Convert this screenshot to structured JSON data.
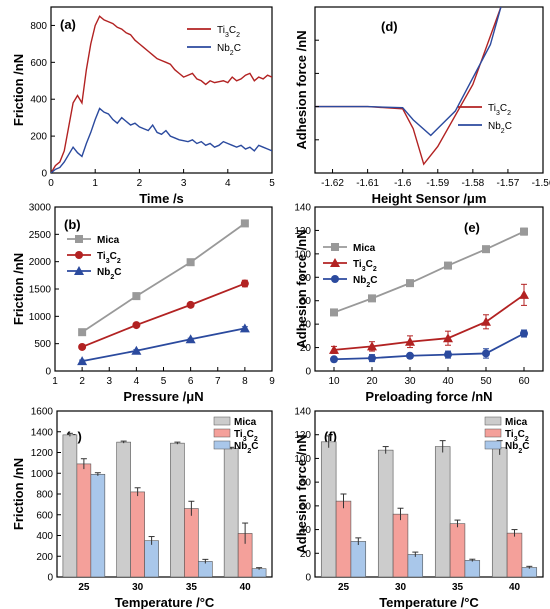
{
  "chart_data": [
    {
      "panel": "(a)",
      "type": "line",
      "xlabel": "Time /s",
      "ylabel": "Friction /nN",
      "xlim": [
        0,
        5
      ],
      "ylim": [
        0,
        900
      ],
      "xticks": [
        0,
        1,
        2,
        3,
        4,
        5
      ],
      "yticks": [
        0,
        200,
        400,
        600,
        800
      ],
      "legend_position": "top-right",
      "series": [
        {
          "name": "Ti3C2",
          "color": "#b22222",
          "x": [
            0.0,
            0.1,
            0.2,
            0.3,
            0.4,
            0.5,
            0.6,
            0.7,
            0.8,
            0.9,
            1.0,
            1.1,
            1.2,
            1.3,
            1.4,
            1.5,
            1.6,
            1.7,
            1.8,
            1.9,
            2.0,
            2.1,
            2.2,
            2.3,
            2.4,
            2.5,
            2.6,
            2.7,
            2.8,
            2.9,
            3.0,
            3.1,
            3.2,
            3.3,
            3.4,
            3.5,
            3.6,
            3.7,
            3.8,
            3.9,
            4.0,
            4.1,
            4.2,
            4.3,
            4.4,
            4.5,
            4.6,
            4.7,
            4.8,
            4.9,
            5.0
          ],
          "values": [
            0,
            40,
            60,
            120,
            250,
            380,
            420,
            380,
            560,
            700,
            800,
            850,
            830,
            820,
            810,
            790,
            780,
            760,
            750,
            720,
            700,
            680,
            660,
            640,
            620,
            610,
            600,
            590,
            560,
            540,
            520,
            530,
            540,
            510,
            500,
            480,
            500,
            490,
            495,
            500,
            490,
            520,
            500,
            510,
            530,
            540,
            500,
            520,
            510,
            530,
            520
          ]
        },
        {
          "name": "Nb2C",
          "color": "#2b4a9e",
          "x": [
            0.0,
            0.1,
            0.2,
            0.3,
            0.4,
            0.5,
            0.6,
            0.7,
            0.8,
            0.9,
            1.0,
            1.1,
            1.2,
            1.3,
            1.4,
            1.5,
            1.6,
            1.7,
            1.8,
            1.9,
            2.0,
            2.1,
            2.2,
            2.3,
            2.4,
            2.5,
            2.6,
            2.7,
            2.8,
            2.9,
            3.0,
            3.1,
            3.2,
            3.3,
            3.4,
            3.5,
            3.6,
            3.7,
            3.8,
            3.9,
            4.0,
            4.1,
            4.2,
            4.3,
            4.4,
            4.5,
            4.6,
            4.7,
            4.8,
            4.9,
            5.0
          ],
          "values": [
            0,
            20,
            30,
            60,
            100,
            140,
            110,
            90,
            160,
            220,
            290,
            350,
            330,
            320,
            290,
            270,
            300,
            280,
            260,
            270,
            250,
            240,
            230,
            260,
            220,
            210,
            230,
            200,
            190,
            180,
            175,
            170,
            180,
            160,
            170,
            150,
            160,
            140,
            150,
            170,
            160,
            150,
            140,
            150,
            130,
            140,
            120,
            150,
            140,
            130,
            120
          ]
        }
      ]
    },
    {
      "panel": "(d)",
      "type": "line",
      "xlabel": "Height Sensor /μm",
      "ylabel": "Adhesion force /nN",
      "xlim": [
        -1.625,
        -1.56
      ],
      "ylim": [
        -30,
        45
      ],
      "xticks": [
        -1.62,
        -1.61,
        -1.6,
        -1.59,
        -1.58,
        -1.57,
        -1.56
      ],
      "legend_position": "bottom-right",
      "series": [
        {
          "name": "Ti3C2",
          "color": "#b22222",
          "x": [
            -1.625,
            -1.61,
            -1.6,
            -1.597,
            -1.594,
            -1.59,
            -1.58,
            -1.572
          ],
          "values": [
            0,
            0,
            -1,
            -10,
            -26,
            -18,
            10,
            45
          ]
        },
        {
          "name": "Nb2C",
          "color": "#2b4a9e",
          "x": [
            -1.625,
            -1.61,
            -1.6,
            -1.597,
            -1.592,
            -1.585,
            -1.575,
            -1.572
          ],
          "values": [
            0,
            0,
            -0.5,
            -6,
            -13,
            -2,
            28,
            45
          ]
        }
      ]
    },
    {
      "panel": "(b)",
      "type": "line",
      "xlabel": "Pressure /μN",
      "ylabel": "Friction /nN",
      "xlim": [
        1,
        9
      ],
      "ylim": [
        0,
        3000
      ],
      "xticks": [
        1,
        2,
        3,
        4,
        5,
        6,
        7,
        8,
        9
      ],
      "yticks": [
        0,
        500,
        1000,
        1500,
        2000,
        2500,
        3000
      ],
      "legend_position": "top-left",
      "x": [
        2,
        4,
        6,
        8
      ],
      "series": [
        {
          "name": "Mica",
          "color": "#999999",
          "marker": "square",
          "values": [
            710,
            1370,
            1990,
            2700
          ],
          "errors": [
            40,
            30,
            30,
            40
          ]
        },
        {
          "name": "Ti3C2",
          "color": "#b22222",
          "marker": "circle",
          "values": [
            440,
            840,
            1210,
            1600
          ],
          "errors": [
            30,
            30,
            40,
            60
          ]
        },
        {
          "name": "Nb2C",
          "color": "#2b4a9e",
          "marker": "triangle",
          "values": [
            180,
            370,
            580,
            780
          ],
          "errors": [
            20,
            20,
            20,
            30
          ]
        }
      ]
    },
    {
      "panel": "(e)",
      "type": "line",
      "xlabel": "Preloading force /nN",
      "ylabel": "Adhesion force /nN",
      "xlim": [
        5,
        65
      ],
      "ylim": [
        0,
        140
      ],
      "xticks": [
        10,
        20,
        30,
        40,
        50,
        60
      ],
      "yticks": [
        0,
        20,
        40,
        60,
        80,
        100,
        120,
        140
      ],
      "legend_position": "top-left",
      "x": [
        10,
        20,
        30,
        40,
        50,
        60
      ],
      "series": [
        {
          "name": "Mica",
          "color": "#999999",
          "marker": "square",
          "values": [
            50,
            62,
            75,
            90,
            104,
            119
          ],
          "errors": [
            2,
            2,
            2,
            2,
            2,
            3
          ]
        },
        {
          "name": "Ti3C2",
          "color": "#b22222",
          "marker": "triangle",
          "values": [
            18,
            21,
            25,
            28,
            42,
            65
          ],
          "errors": [
            3,
            4,
            5,
            6,
            6,
            9
          ]
        },
        {
          "name": "Nb2C",
          "color": "#2b4a9e",
          "marker": "circle",
          "values": [
            10,
            11,
            13,
            14,
            15,
            32
          ],
          "errors": [
            2,
            3,
            2,
            3,
            4,
            3
          ]
        }
      ]
    },
    {
      "panel": "(c)",
      "type": "bar",
      "xlabel": "Temperature /°C",
      "ylabel": "Friction /nN",
      "ylim": [
        0,
        1600
      ],
      "yticks": [
        0,
        200,
        400,
        600,
        800,
        1000,
        1200,
        1400,
        1600
      ],
      "categories": [
        "25",
        "30",
        "35",
        "40"
      ],
      "legend_position": "top-right",
      "series": [
        {
          "name": "Mica",
          "color": "#cccccc",
          "values": [
            1370,
            1300,
            1290,
            1240
          ],
          "errors": [
            15,
            10,
            10,
            10
          ]
        },
        {
          "name": "Ti3C2",
          "color": "#f4a09a",
          "values": [
            1090,
            820,
            660,
            420
          ],
          "errors": [
            50,
            40,
            70,
            100
          ]
        },
        {
          "name": "Nb2C",
          "color": "#a9c7ea",
          "values": [
            990,
            350,
            150,
            80
          ],
          "errors": [
            15,
            40,
            20,
            10
          ]
        }
      ]
    },
    {
      "panel": "(f)",
      "type": "bar",
      "xlabel": "Temperature /°C",
      "ylabel": "Adhesion force /nN",
      "ylim": [
        0,
        140
      ],
      "yticks": [
        0,
        20,
        40,
        60,
        80,
        100,
        120,
        140
      ],
      "categories": [
        "25",
        "30",
        "35",
        "40"
      ],
      "legend_position": "top-right",
      "series": [
        {
          "name": "Mica",
          "color": "#cccccc",
          "values": [
            114,
            107,
            110,
            109
          ],
          "errors": [
            5,
            3,
            5,
            6
          ]
        },
        {
          "name": "Ti3C2",
          "color": "#f4a09a",
          "values": [
            64,
            53,
            45,
            37
          ],
          "errors": [
            6,
            5,
            3,
            3
          ]
        },
        {
          "name": "Nb2C",
          "color": "#a9c7ea",
          "values": [
            30,
            19,
            14,
            8
          ],
          "errors": [
            3,
            2,
            1,
            1
          ]
        }
      ]
    }
  ]
}
